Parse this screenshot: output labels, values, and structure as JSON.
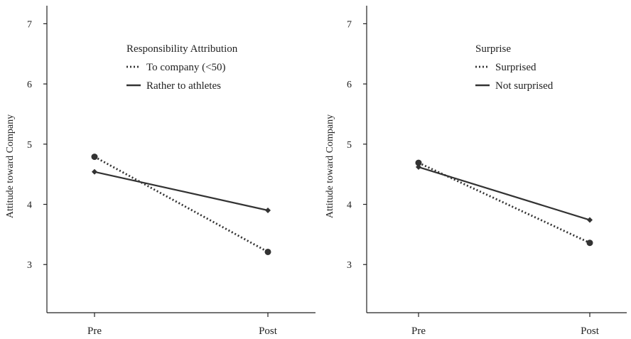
{
  "chart_data": [
    {
      "type": "line",
      "categories": [
        "Pre",
        "Post"
      ],
      "ylabel": "Attitude toward Company",
      "ylim": [
        2.2,
        7.3
      ],
      "yticks": [
        3,
        4,
        5,
        6,
        7
      ],
      "legend": {
        "title": "Responsibility Attribution",
        "placement": "top-center"
      },
      "series": [
        {
          "name": "To company (<50)",
          "style": "dotted",
          "marker": "circle",
          "values": [
            4.79,
            3.21
          ]
        },
        {
          "name": "Rather to athletes",
          "style": "solid",
          "marker": "diamond",
          "values": [
            4.54,
            3.9
          ]
        }
      ]
    },
    {
      "type": "line",
      "categories": [
        "Pre",
        "Post"
      ],
      "ylabel": "Attitude toward Company",
      "ylim": [
        2.2,
        7.3
      ],
      "yticks": [
        3,
        4,
        5,
        6,
        7
      ],
      "legend": {
        "title": "Surprise",
        "placement": "top-center"
      },
      "series": [
        {
          "name": "Surprised",
          "style": "dotted",
          "marker": "circle",
          "values": [
            4.69,
            3.36
          ]
        },
        {
          "name": "Not surprised",
          "style": "solid",
          "marker": "diamond",
          "values": [
            4.62,
            3.74
          ]
        }
      ]
    }
  ],
  "colors": {
    "line": "#333333",
    "axis": "#222222"
  }
}
